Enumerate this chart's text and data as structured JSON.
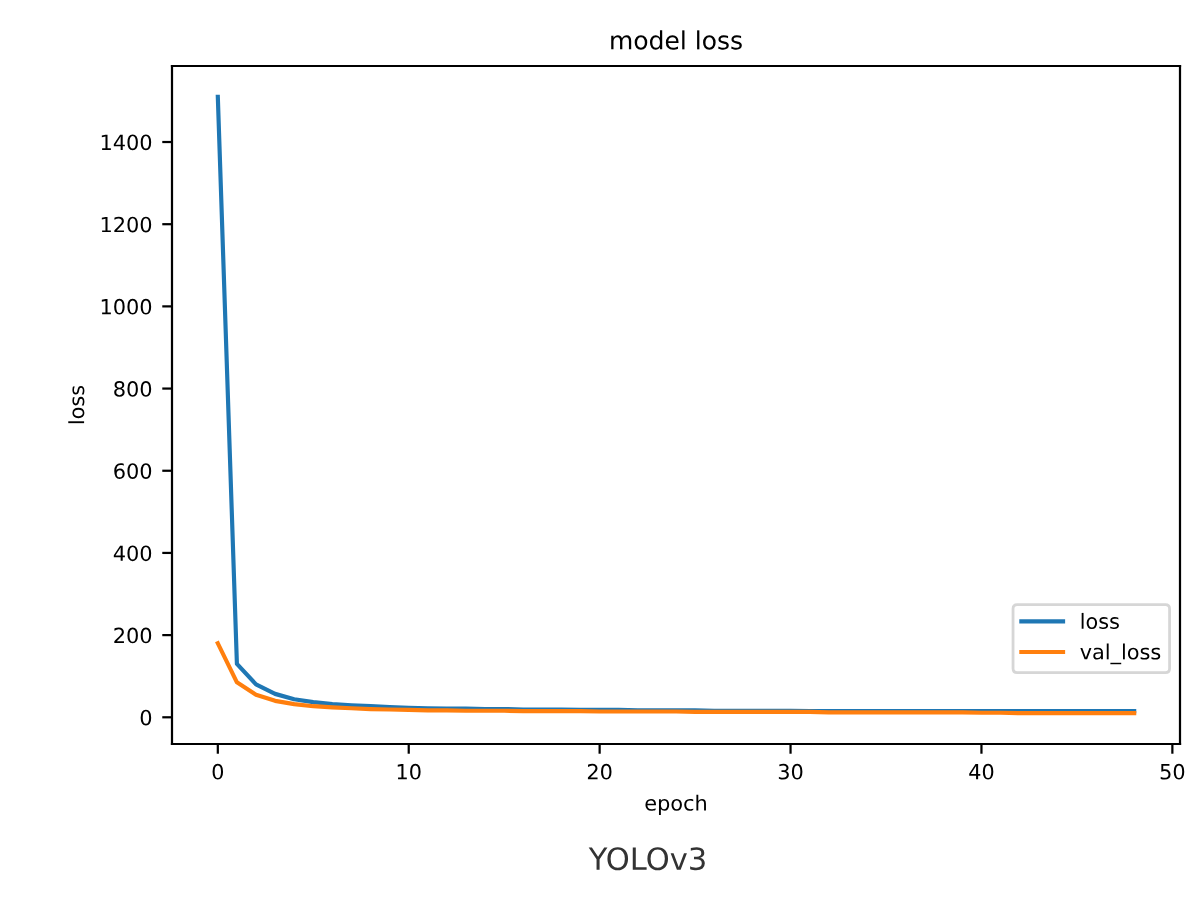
{
  "chart_data": {
    "type": "line",
    "title": "model loss",
    "xlabel": "epoch",
    "ylabel": "loss",
    "x": [
      0,
      1,
      2,
      3,
      4,
      5,
      6,
      7,
      8,
      9,
      10,
      11,
      12,
      13,
      14,
      15,
      16,
      17,
      18,
      19,
      20,
      21,
      22,
      23,
      24,
      25,
      26,
      27,
      28,
      29,
      30,
      31,
      32,
      33,
      34,
      35,
      36,
      37,
      38,
      39,
      40,
      41,
      42,
      43,
      44,
      45,
      46,
      47,
      48
    ],
    "series": [
      {
        "name": "loss",
        "color": "#1f77b4",
        "values": [
          1510,
          130,
          80,
          57,
          44,
          37,
          32,
          29,
          27,
          25,
          23,
          22,
          21,
          21,
          20,
          20,
          19,
          19,
          19,
          18,
          18,
          18,
          17,
          17,
          17,
          17,
          16,
          16,
          16,
          16,
          16,
          15,
          15,
          15,
          15,
          15,
          15,
          15,
          15,
          15,
          15,
          15,
          15,
          15,
          15,
          15,
          15,
          15,
          15
        ]
      },
      {
        "name": "val_loss",
        "color": "#ff7f0e",
        "values": [
          180,
          85,
          55,
          40,
          32,
          27,
          24,
          22,
          20,
          19,
          18,
          17,
          17,
          16,
          16,
          16,
          15,
          15,
          15,
          15,
          14,
          14,
          14,
          14,
          14,
          13,
          13,
          13,
          13,
          13,
          13,
          13,
          12,
          12,
          12,
          12,
          12,
          12,
          12,
          12,
          11,
          11,
          10,
          10,
          10,
          10,
          10,
          10,
          10
        ]
      }
    ],
    "xlim": [
      -2.4,
      50.4
    ],
    "ylim": [
      -65,
      1585
    ],
    "xticks": [
      0,
      10,
      20,
      30,
      40,
      50
    ],
    "yticks": [
      0,
      200,
      400,
      600,
      800,
      1000,
      1200,
      1400
    ],
    "grid": false,
    "legend": "lower right",
    "marker": "none",
    "line_style": "solid",
    "annotations": [
      "YOLOv3"
    ]
  }
}
